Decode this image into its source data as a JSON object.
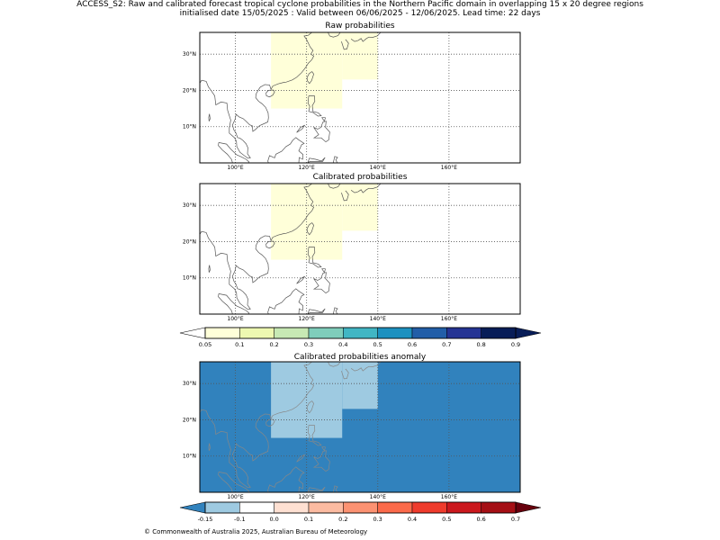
{
  "header": {
    "title_line1": "ACCESS_S2: Raw and calibrated forecast tropical cyclone probabilities in the Northern Pacific domain in overlapping 15 x 20 degree regions",
    "title_line2": "initialised date 15/05/2025 :  Valid between 06/06/2025 - 12/06/2025. Lead time: 22 days"
  },
  "footer": {
    "copyright": "© Commonwealth of Australia 2025, Australian Bureau of Meteorology"
  },
  "chart_data": [
    {
      "type": "heatmap",
      "title": "Raw probabilities",
      "map": {
        "lon_range": [
          90,
          180
        ],
        "lat_range": [
          0,
          36
        ],
        "lon_ticks": [
          100,
          120,
          140,
          160
        ],
        "lon_tick_labels": [
          "100°E",
          "120°E",
          "140°E",
          "160°E"
        ],
        "lat_ticks": [
          10,
          20,
          30
        ],
        "lat_tick_labels": [
          "10°N",
          "20°N",
          "30°N"
        ],
        "grid": true
      },
      "background_color": "#ffffff",
      "regions": [
        {
          "lon": [
            110,
            130
          ],
          "lat": [
            15,
            36
          ],
          "value": "0.05-0.1",
          "color": "#ffffd9"
        },
        {
          "lon": [
            130,
            140
          ],
          "lat": [
            23,
            36
          ],
          "value": "0.05-0.1",
          "color": "#ffffd9"
        }
      ]
    },
    {
      "type": "heatmap",
      "title": "Calibrated probabilities",
      "map": {
        "lon_range": [
          90,
          180
        ],
        "lat_range": [
          0,
          36
        ],
        "lon_ticks": [
          100,
          120,
          140,
          160
        ],
        "lon_tick_labels": [
          "100°E",
          "120°E",
          "140°E",
          "160°E"
        ],
        "lat_ticks": [
          10,
          20,
          30
        ],
        "lat_tick_labels": [
          "10°N",
          "20°N",
          "30°N"
        ],
        "grid": true
      },
      "background_color": "#ffffff",
      "regions": [
        {
          "lon": [
            110,
            130
          ],
          "lat": [
            15,
            36
          ],
          "value": "0.05-0.1",
          "color": "#ffffd9"
        },
        {
          "lon": [
            130,
            140
          ],
          "lat": [
            23,
            36
          ],
          "value": "0.05-0.1",
          "color": "#ffffd9"
        }
      ],
      "colorbar": {
        "ticks": [
          "0.05",
          "0.1",
          "0.2",
          "0.3",
          "0.4",
          "0.5",
          "0.6",
          "0.7",
          "0.8",
          "0.9"
        ],
        "colors": [
          "#ffffd9",
          "#edf8b1",
          "#c7e9b4",
          "#7fcdbb",
          "#41b6c4",
          "#1d91c0",
          "#225ea8",
          "#253494",
          "#081d58"
        ],
        "under_color": "#ffffff",
        "over_color": "#081d58"
      }
    },
    {
      "type": "heatmap",
      "title": "Calibrated probabilities anomaly",
      "map": {
        "lon_range": [
          90,
          180
        ],
        "lat_range": [
          0,
          36
        ],
        "lon_ticks": [
          100,
          120,
          140,
          160
        ],
        "lon_tick_labels": [
          "100°E",
          "120°E",
          "140°E",
          "160°E"
        ],
        "lat_ticks": [
          10,
          20,
          30
        ],
        "lat_tick_labels": [
          "10°N",
          "20°N",
          "30°N"
        ],
        "grid": true
      },
      "background_color": "#3182bd",
      "regions": [
        {
          "lon": [
            110,
            130
          ],
          "lat": [
            15,
            36
          ],
          "value": "-0.15 to -0.1",
          "color": "#9ecae1"
        },
        {
          "lon": [
            130,
            140
          ],
          "lat": [
            23,
            36
          ],
          "value": "-0.15 to -0.1",
          "color": "#9ecae1"
        }
      ],
      "colorbar": {
        "ticks": [
          "-0.15",
          "-0.1",
          "0.0",
          "0.1",
          "0.2",
          "0.3",
          "0.4",
          "0.5",
          "0.6",
          "0.7"
        ],
        "colors": [
          "#9ecae1",
          "#ffffff",
          "#fee0d2",
          "#fcbba1",
          "#fc9272",
          "#fb6a4a",
          "#ef3b2c",
          "#cb181d",
          "#a50f15"
        ],
        "under_color": "#3182bd",
        "over_color": "#67000d"
      }
    }
  ]
}
